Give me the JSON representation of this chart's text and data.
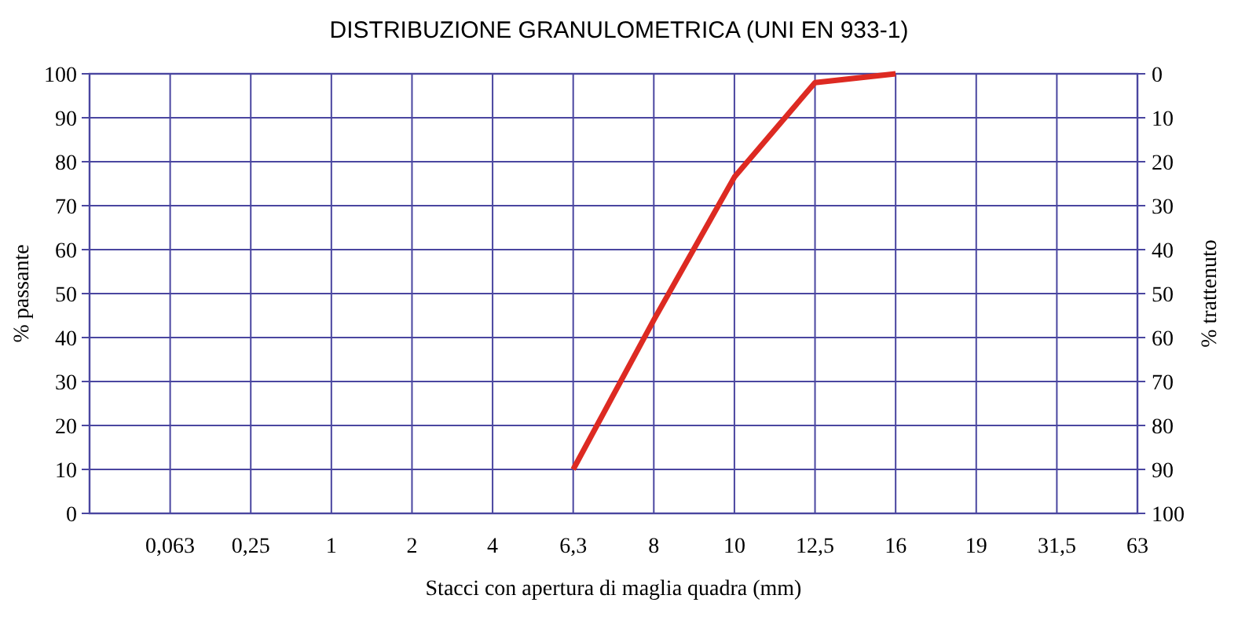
{
  "chart_data": {
    "type": "line",
    "title": "DISTRIBUZIONE GRANULOMETRICA (UNI EN 933-1)",
    "xlabel": "Stacci con apertura di maglia quadra (mm)",
    "ylabel": "% passante",
    "y2label": "% trattenuto",
    "categories": [
      null,
      "0,063",
      "0,25",
      "1",
      "2",
      "4",
      "6,3",
      "8",
      "10",
      "12,5",
      "16",
      "19",
      "31,5",
      "63"
    ],
    "ylim": [
      0,
      100
    ],
    "yticks": [
      0,
      10,
      20,
      30,
      40,
      50,
      60,
      70,
      80,
      90,
      100
    ],
    "y2lim": [
      100,
      0
    ],
    "y2ticks": [
      0,
      10,
      20,
      30,
      40,
      50,
      60,
      70,
      80,
      90,
      100
    ],
    "grid": true,
    "marker": "none",
    "line_style": "solid",
    "series": [
      {
        "color": "#dd2a22",
        "values": [
          null,
          null,
          null,
          null,
          null,
          null,
          10,
          44,
          76.5,
          98,
          100,
          null,
          null,
          null
        ]
      }
    ]
  }
}
